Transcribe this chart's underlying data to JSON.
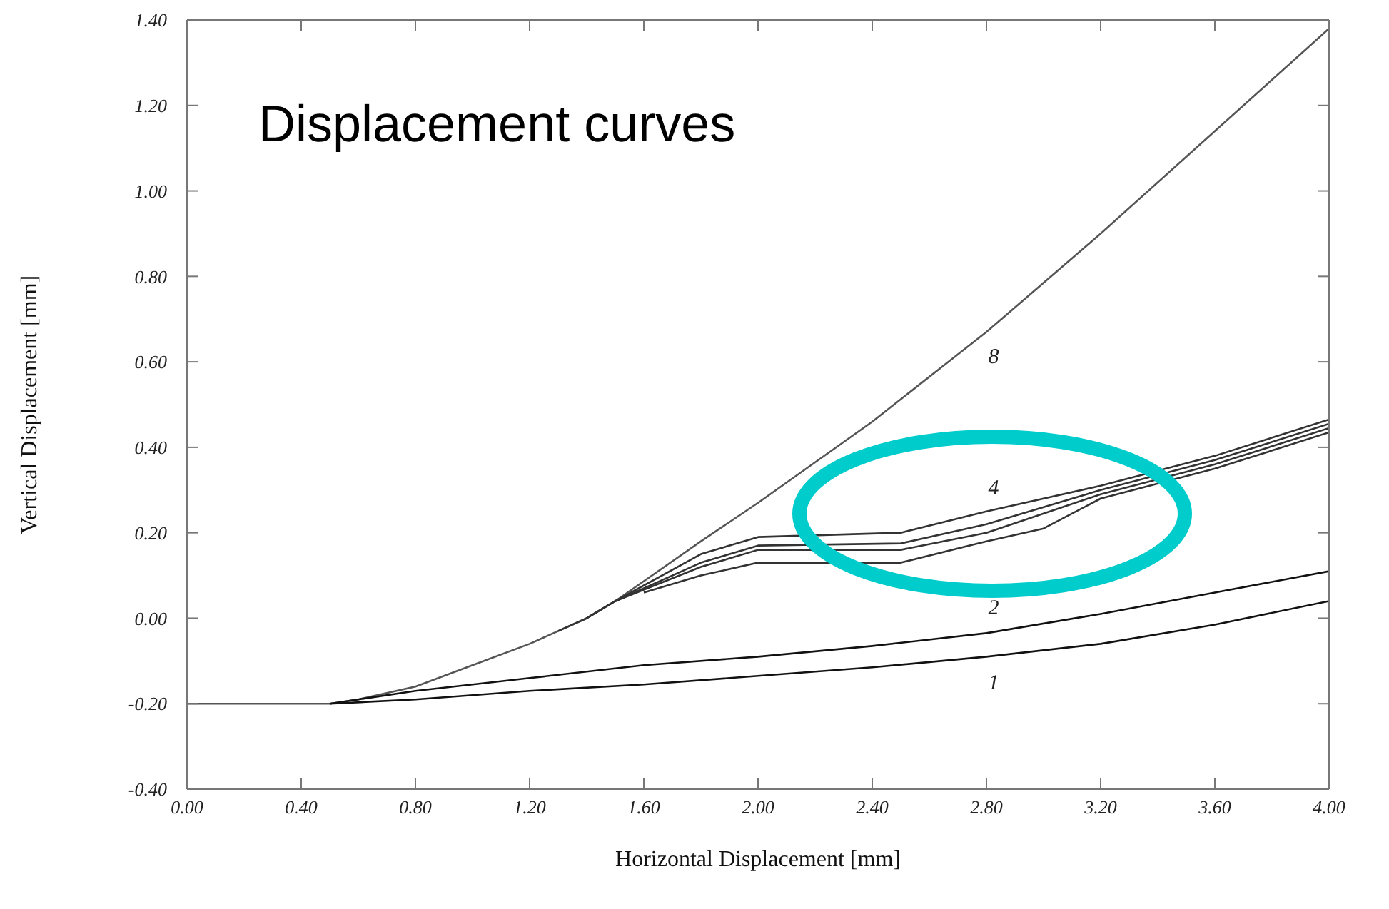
{
  "chart_data": {
    "type": "line",
    "title": "Displacement curves",
    "xlabel": "Horizontal  Displacement  [mm]",
    "ylabel": "Vertical  Displacement  [mm]",
    "xlim": [
      0,
      4
    ],
    "ylim": [
      -0.4,
      1.4
    ],
    "xticks": [
      {
        "value": 0,
        "label": "0.00"
      },
      {
        "value": 0.4,
        "label": "0.40"
      },
      {
        "value": 0.8,
        "label": "0.80"
      },
      {
        "value": 1.2,
        "label": "1.20"
      },
      {
        "value": 1.6,
        "label": "1.60"
      },
      {
        "value": 2,
        "label": "2.00"
      },
      {
        "value": 2.4,
        "label": "2.40"
      },
      {
        "value": 2.8,
        "label": "2.80"
      },
      {
        "value": 3.2,
        "label": "3.20"
      },
      {
        "value": 3.6,
        "label": "3.60"
      },
      {
        "value": 4,
        "label": "4.00"
      }
    ],
    "yticks": [
      {
        "value": -0.4,
        "label": "-0.40"
      },
      {
        "value": -0.2,
        "label": "-0.20"
      },
      {
        "value": 0,
        "label": "0.00"
      },
      {
        "value": 0.2,
        "label": "0.20"
      },
      {
        "value": 0.4,
        "label": "0.40"
      },
      {
        "value": 0.6,
        "label": "0.60"
      },
      {
        "value": 0.8,
        "label": "0.80"
      },
      {
        "value": 1,
        "label": "1.00"
      },
      {
        "value": 1.2,
        "label": "1.20"
      },
      {
        "value": 1.4,
        "label": "1.40"
      }
    ],
    "grid": false,
    "legend": false,
    "marker": "none",
    "line_style": "solid",
    "series": [
      {
        "name": "8",
        "color": "#555555",
        "x": [
          0,
          0.4,
          0.5,
          0.6,
          0.8,
          1.0,
          1.2,
          1.4,
          1.5,
          1.8,
          2.0,
          2.4,
          2.8,
          3.2,
          3.6,
          4.0
        ],
        "values": [
          -0.2,
          -0.2,
          -0.2,
          -0.19,
          -0.16,
          -0.11,
          -0.06,
          0.0,
          0.04,
          0.18,
          0.27,
          0.46,
          0.67,
          0.9,
          1.14,
          1.38
        ]
      },
      {
        "name": "4",
        "color": "#333333",
        "x": [
          1.3,
          1.4,
          1.5,
          1.8,
          2.0,
          2.5,
          2.8,
          3.2,
          3.6,
          4.0
        ],
        "values": [
          -0.03,
          0.0,
          0.04,
          0.15,
          0.19,
          0.2,
          0.25,
          0.31,
          0.38,
          0.465
        ]
      },
      {
        "color": "#333333",
        "x": [
          1.4,
          1.5,
          1.8,
          2.0,
          2.5,
          2.8,
          3.2,
          3.6,
          4.0
        ],
        "values": [
          0.0,
          0.04,
          0.13,
          0.17,
          0.175,
          0.22,
          0.3,
          0.37,
          0.455
        ]
      },
      {
        "color": "#333333",
        "x": [
          1.5,
          1.8,
          2.0,
          2.5,
          2.8,
          3.2,
          3.6,
          4.0
        ],
        "values": [
          0.04,
          0.12,
          0.16,
          0.16,
          0.2,
          0.29,
          0.36,
          0.445
        ]
      },
      {
        "color": "#333333",
        "x": [
          1.6,
          1.8,
          2.0,
          2.5,
          2.8,
          3.0,
          3.2,
          3.6,
          4.0
        ],
        "values": [
          0.06,
          0.1,
          0.13,
          0.13,
          0.18,
          0.21,
          0.28,
          0.35,
          0.435
        ]
      },
      {
        "name": "2",
        "color": "#111111",
        "x": [
          0.5,
          0.8,
          1.2,
          1.6,
          2.0,
          2.4,
          2.8,
          3.2,
          3.6,
          4.0
        ],
        "values": [
          -0.2,
          -0.17,
          -0.14,
          -0.11,
          -0.09,
          -0.065,
          -0.035,
          0.01,
          0.06,
          0.11
        ]
      },
      {
        "name": "1",
        "color": "#111111",
        "x": [
          0.5,
          0.8,
          1.2,
          1.6,
          2.0,
          2.4,
          2.8,
          3.2,
          3.6,
          4.0
        ],
        "values": [
          -0.2,
          -0.19,
          -0.17,
          -0.155,
          -0.135,
          -0.115,
          -0.09,
          -0.06,
          -0.015,
          0.04
        ]
      }
    ]
  }
}
